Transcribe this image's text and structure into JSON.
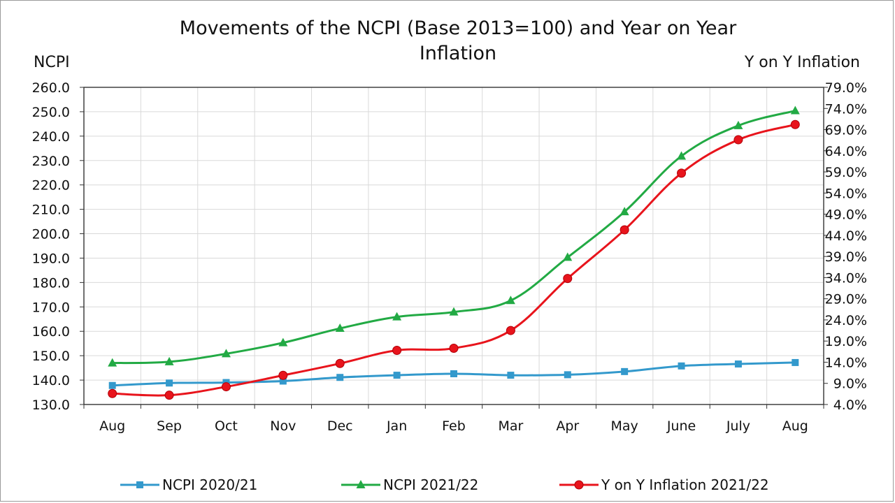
{
  "chart_data": {
    "type": "line",
    "title": "Movements of the NCPI (Base 2013=100) and Year on Year Inflation",
    "title_lines": [
      "Movements of the NCPI (Base 2013=100) and Year on Year",
      "Inflation"
    ],
    "ylabel_left": "NCPI",
    "ylabel_right": "Y on Y Inflation",
    "categories": [
      "Aug",
      "Sep",
      "Oct",
      "Nov",
      "Dec",
      "Jan",
      "Feb",
      "Mar",
      "Apr",
      "May",
      "June",
      "July",
      "Aug"
    ],
    "ylim_left": [
      130,
      260
    ],
    "ylim_right": [
      4.0,
      79.0
    ],
    "yticks_left": [
      "130.0",
      "140.0",
      "150.0",
      "160.0",
      "170.0",
      "180.0",
      "190.0",
      "200.0",
      "210.0",
      "220.0",
      "230.0",
      "240.0",
      "250.0",
      "260.0"
    ],
    "yticks_right": [
      "4.0%",
      "9.0%",
      "14.0%",
      "19.0%",
      "24.0%",
      "29.0%",
      "34.0%",
      "39.0%",
      "44.0%",
      "49.0%",
      "54.0%",
      "59.0%",
      "64.0%",
      "69.0%",
      "74.0%",
      "79.0%"
    ],
    "grid": true,
    "legend_position": "bottom",
    "series": [
      {
        "name": "NCPI 2020/21",
        "axis": "left",
        "color": "#3399cc",
        "marker": "square",
        "values": [
          137.8,
          138.8,
          139.0,
          139.6,
          141.1,
          142.0,
          142.6,
          142.0,
          142.2,
          143.5,
          145.8,
          146.6,
          147.2
        ]
      },
      {
        "name": "NCPI 2021/22",
        "axis": "left",
        "color": "#22aa44",
        "marker": "triangle",
        "values": [
          147.0,
          147.5,
          150.8,
          155.3,
          161.2,
          165.9,
          167.9,
          172.6,
          190.3,
          209.0,
          231.8,
          244.3,
          250.4
        ]
      },
      {
        "name": "Y on Y Inflation 2021/22",
        "axis": "right",
        "color": "#e8141c",
        "marker": "circle",
        "values": [
          6.6,
          6.2,
          8.2,
          10.9,
          13.7,
          16.8,
          17.3,
          21.5,
          33.8,
          45.3,
          58.7,
          66.6,
          70.2
        ]
      }
    ]
  }
}
